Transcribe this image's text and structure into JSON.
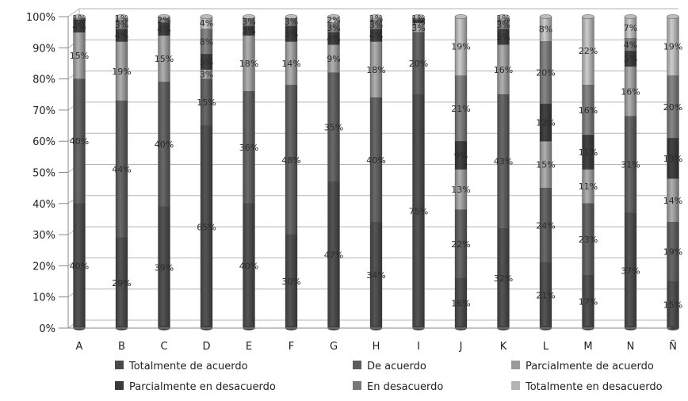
{
  "chart_data": {
    "type": "bar",
    "stacked": true,
    "normalized": true,
    "three_d": true,
    "categories": [
      "A",
      "B",
      "C",
      "D",
      "E",
      "F",
      "G",
      "H",
      "I",
      "J",
      "K",
      "L",
      "M",
      "N",
      "Ñ"
    ],
    "ylim": [
      0,
      100
    ],
    "y_ticks": [
      "0%",
      "10%",
      "20%",
      "30%",
      "40%",
      "50%",
      "60%",
      "70%",
      "80%",
      "90%",
      "100%"
    ],
    "grid": true,
    "legend_position": "bottom",
    "title": "",
    "xlabel": "",
    "ylabel": "",
    "series": [
      {
        "name": "Totalmente de acuerdo",
        "color": "#4a4a4a",
        "values": [
          40,
          29,
          39,
          65,
          40,
          30,
          47,
          34,
          75,
          16,
          32,
          21,
          17,
          37,
          15
        ],
        "labels": [
          "40%",
          "29%",
          "39%",
          "65%",
          "40%",
          "30%",
          "47%",
          "34%",
          "75%",
          "16%",
          "32%",
          "21%",
          "17%",
          "37%",
          "15%"
        ]
      },
      {
        "name": "De acuerdo",
        "color": "#5c5c5c",
        "values": [
          40,
          44,
          40,
          15,
          36,
          48,
          35,
          40,
          20,
          22,
          43,
          24,
          23,
          31,
          19
        ],
        "labels": [
          "40%",
          "44%",
          "40%",
          "15%",
          "36%",
          "48%",
          "35%",
          "40%",
          "20%",
          "22%",
          "43%",
          "24%",
          "23%",
          "31%",
          "19%"
        ]
      },
      {
        "name": "Parcialmente de acuerdo",
        "color": "#9a9a9a",
        "values": [
          15,
          19,
          15,
          3,
          18,
          14,
          9,
          18,
          3,
          13,
          16,
          15,
          11,
          16,
          14
        ],
        "labels": [
          "15%",
          "19%",
          "15%",
          "3%",
          "18%",
          "14%",
          "9%",
          "18%",
          "3%",
          "13%",
          "16%",
          "15%",
          "11%",
          "16%",
          "14%"
        ]
      },
      {
        "name": "Parcialmente en desacuerdo",
        "color": "#3a3a3a",
        "values": [
          4,
          4,
          4,
          5,
          3,
          5,
          4,
          4,
          1,
          9,
          5,
          12,
          11,
          5,
          13
        ],
        "labels": [
          "4%",
          "4%",
          "4%",
          "5%",
          "3%",
          "5%",
          "4%",
          "4%",
          "1%",
          "9%",
          "5%",
          "12%",
          "11%",
          "5%",
          "13%"
        ]
      },
      {
        "name": "En desacuerdo",
        "color": "#777777",
        "values": [
          1,
          3,
          2,
          8,
          3,
          3,
          3,
          3,
          1,
          21,
          3,
          20,
          16,
          4,
          20
        ],
        "labels": [
          "1%",
          "3%",
          "2%",
          "8%",
          "3%",
          "3%",
          "3%",
          "3%",
          "1%",
          "21%",
          "3%",
          "20%",
          "16%",
          "4%",
          "20%"
        ]
      },
      {
        "name": "Totalmente en desacuerdo",
        "color": "#b3b3b3",
        "values": [
          0,
          1,
          0,
          4,
          0,
          0,
          2,
          1,
          0,
          19,
          1,
          8,
          22,
          7,
          19
        ],
        "labels": [
          "",
          "1%",
          "",
          "4%",
          "",
          "",
          "2%",
          "1%",
          "",
          "19%",
          "1%",
          "8%",
          "22%",
          "7%",
          "19%"
        ]
      }
    ]
  }
}
